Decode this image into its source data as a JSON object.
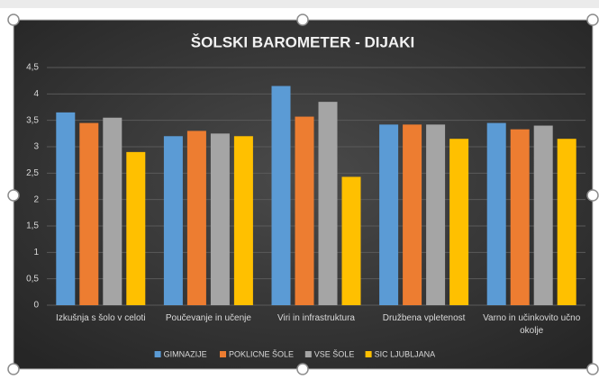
{
  "chart_data": {
    "type": "bar",
    "title": "ŠOLSKI BAROMETER - DIJAKI",
    "categories": [
      "Izkušnja s šolo v celoti",
      "Poučevanje in učenje",
      "Viri in infrastruktura",
      "Družbena vpletenost",
      "Varno in učinkovito učno okolje"
    ],
    "series": [
      {
        "name": "GIMNAZIJE",
        "color": "#5b9bd5",
        "values": [
          3.65,
          3.2,
          4.15,
          3.42,
          3.45
        ]
      },
      {
        "name": "POKLICNE ŠOLE",
        "color": "#ed7d31",
        "values": [
          3.45,
          3.3,
          3.57,
          3.42,
          3.33
        ]
      },
      {
        "name": "VSE ŠOLE",
        "color": "#a5a5a5",
        "values": [
          3.55,
          3.25,
          3.85,
          3.42,
          3.4
        ]
      },
      {
        "name": "SIC LJUBLJANA",
        "color": "#ffc000",
        "values": [
          2.9,
          3.2,
          2.43,
          3.15,
          3.15
        ]
      }
    ],
    "ylim": [
      0,
      4.5
    ],
    "yticks": [
      0,
      {
        "value": 0.5,
        "label": "0,5"
      },
      1,
      {
        "value": 1.5,
        "label": "1,5"
      },
      2,
      {
        "value": 2.5,
        "label": "2,5"
      },
      3,
      {
        "value": 3.5,
        "label": "3,5"
      },
      4,
      {
        "value": 4.5,
        "label": "4,5"
      }
    ],
    "grid": true,
    "legend": "bottom"
  }
}
